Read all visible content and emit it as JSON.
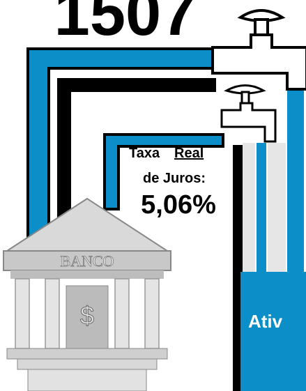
{
  "title": "1507",
  "rate": {
    "word_1": "Taxa",
    "word_2": "Real",
    "line_2": "de Juros:",
    "value": "5,06%"
  },
  "bank": {
    "label": "BANCO",
    "symbol": "$"
  },
  "box_label": "Ativ"
}
